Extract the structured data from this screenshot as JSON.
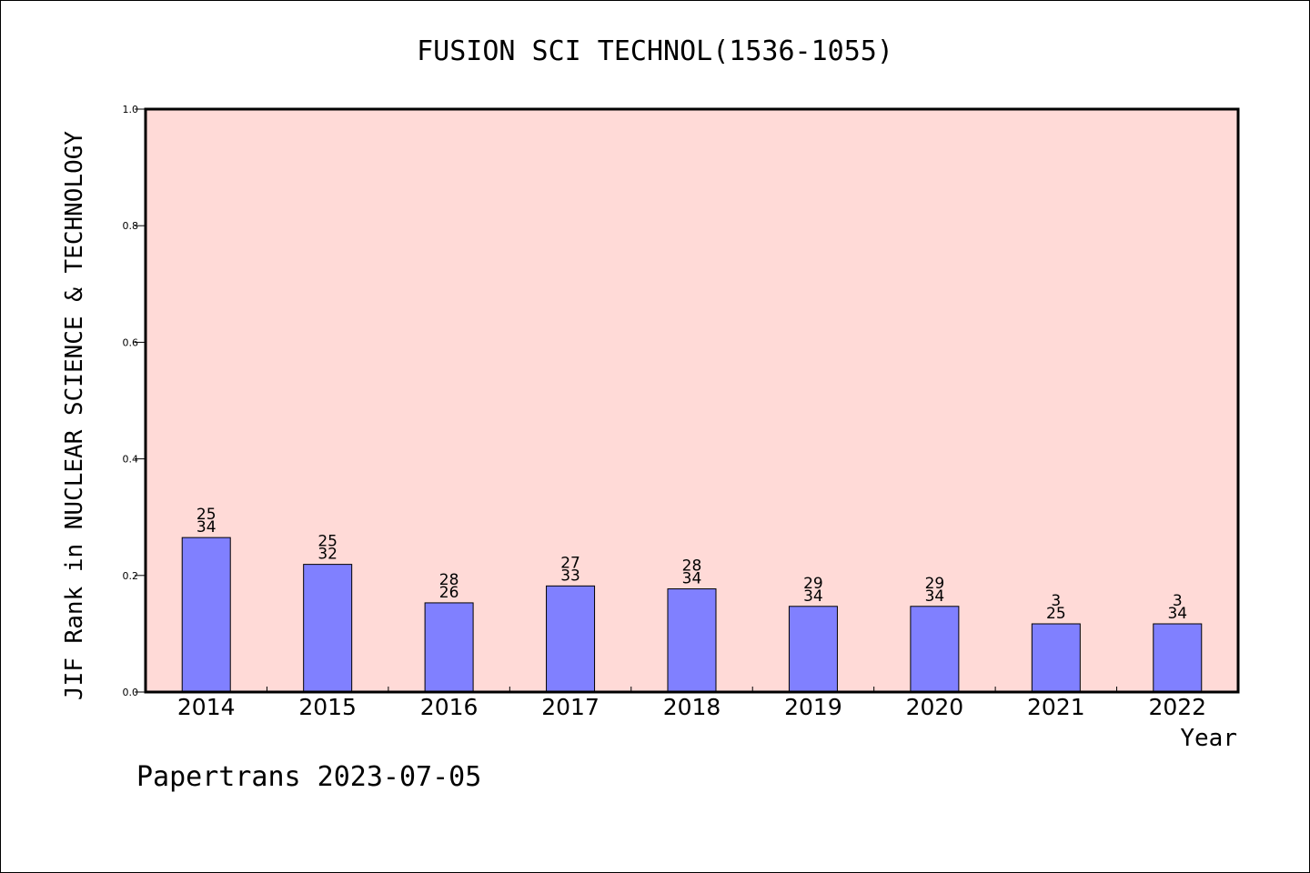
{
  "chart_data": {
    "type": "bar",
    "title": "FUSION SCI TECHNOL(1536-1055)",
    "xlabel": "Year",
    "ylabel": "JIF Rank in NUCLEAR SCIENCE & TECHNOLOGY",
    "ylim": [
      0,
      1.0
    ],
    "yticks": [
      "0.0",
      "0.2",
      "0.4",
      "0.6",
      "0.8",
      "1.0"
    ],
    "categories": [
      "2014",
      "2015",
      "2016",
      "2017",
      "2018",
      "2019",
      "2020",
      "2021",
      "2022"
    ],
    "values": [
      0.265,
      0.219,
      0.153,
      0.182,
      0.177,
      0.147,
      0.147,
      0.117,
      0.117
    ],
    "labels_top": [
      "25",
      "25",
      "28",
      "27",
      "28",
      "29",
      "29",
      "3",
      "3"
    ],
    "labels_bottom": [
      "34",
      "32",
      "26",
      "33",
      "34",
      "34",
      "34",
      "25",
      "34"
    ],
    "grid": false,
    "colors": {
      "plot_background": "#ffdad7",
      "bar_fill": "#8080ff",
      "bar_stroke": "#000000"
    }
  },
  "footer": "Papertrans 2023-07-05"
}
